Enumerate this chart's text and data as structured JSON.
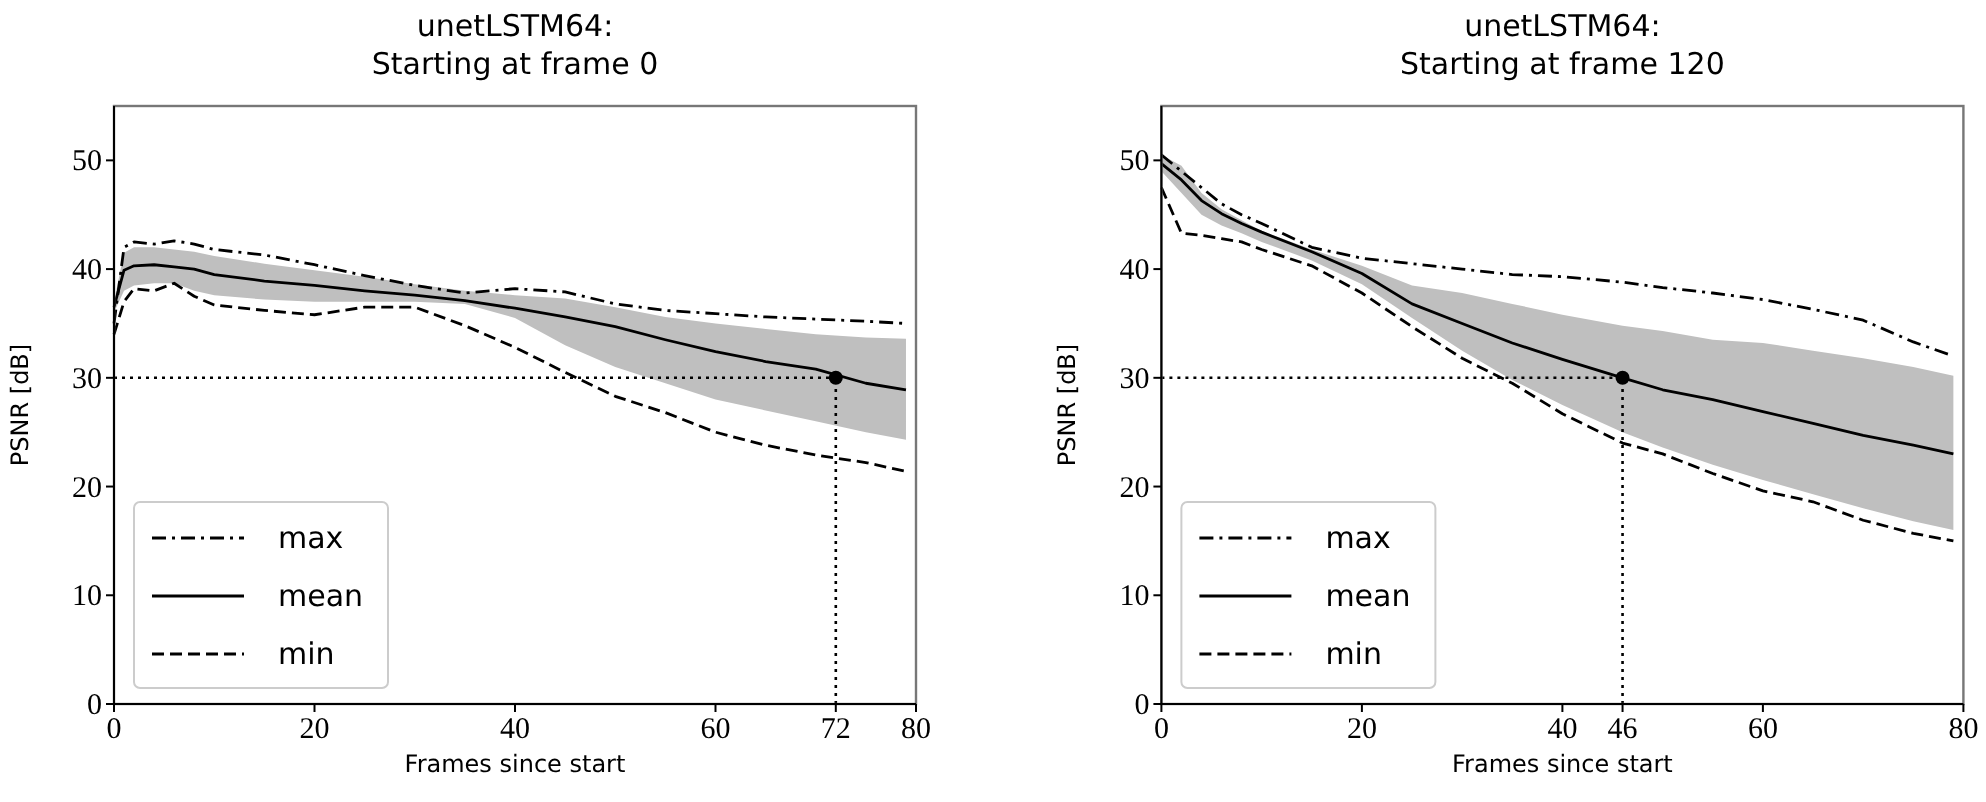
{
  "chart_data": [
    {
      "type": "line",
      "title": "unetLSTM64:\nStarting at frame 0",
      "xlabel": "Frames since start",
      "ylabel": "PSNR [dB]",
      "xlim": [
        0,
        80
      ],
      "xticks": [
        0,
        20,
        40,
        60,
        72,
        80
      ],
      "ylim": [
        0,
        55
      ],
      "yticks": [
        0,
        10,
        20,
        30,
        40,
        50
      ],
      "legend": "bottom left",
      "grid": false,
      "series": [
        {
          "name": "max",
          "color": "#000000",
          "line_style": "dashdot",
          "x": [
            0,
            1,
            2,
            4,
            6,
            8,
            10,
            15,
            20,
            25,
            30,
            35,
            40,
            45,
            50,
            55,
            60,
            65,
            70,
            75,
            79
          ],
          "values": [
            35,
            42,
            42.5,
            42.3,
            42.6,
            42.3,
            41.8,
            41.3,
            40.4,
            39.4,
            38.5,
            37.8,
            38.2,
            37.9,
            36.8,
            36.2,
            35.9,
            35.6,
            35.4,
            35.2,
            35.0
          ]
        },
        {
          "name": "mean",
          "color": "#000000",
          "line_style": "solid",
          "x": [
            0,
            1,
            2,
            4,
            6,
            8,
            10,
            15,
            20,
            25,
            30,
            35,
            40,
            45,
            50,
            55,
            60,
            65,
            70,
            75,
            79
          ],
          "values": [
            36.5,
            39.9,
            40.3,
            40.4,
            40.2,
            40.0,
            39.5,
            38.9,
            38.5,
            38.0,
            37.6,
            37.1,
            36.4,
            35.6,
            34.7,
            33.5,
            32.4,
            31.5,
            30.8,
            29.5,
            28.9
          ],
          "lower": [
            36,
            38,
            38.5,
            38.7,
            38.7,
            38,
            37.6,
            37.2,
            37,
            37,
            37,
            36.8,
            35.5,
            33,
            31,
            29.5,
            28,
            27,
            26,
            25,
            24.3
          ],
          "upper": [
            37,
            41.5,
            42,
            42,
            41.8,
            41.6,
            41.2,
            40.5,
            39.9,
            39.3,
            38.6,
            38,
            37.6,
            37.3,
            36.5,
            35.6,
            35,
            34.5,
            34,
            33.7,
            33.6
          ]
        },
        {
          "name": "min",
          "color": "#000000",
          "line_style": "dashed",
          "x": [
            0,
            1,
            2,
            4,
            6,
            8,
            10,
            15,
            20,
            25,
            30,
            35,
            40,
            45,
            50,
            55,
            60,
            65,
            70,
            75,
            79
          ],
          "values": [
            34,
            37,
            38.2,
            38,
            38.7,
            37.5,
            36.7,
            36.2,
            35.8,
            36.5,
            36.5,
            34.8,
            32.8,
            30.5,
            28.3,
            26.8,
            25.0,
            23.8,
            22.9,
            22.2,
            21.4
          ]
        },
        {
          "type": "scatter",
          "color": "#000000",
          "marker": "circle",
          "x": [
            72
          ],
          "values": [
            30
          ]
        }
      ],
      "ref_lines": [
        {
          "axis": "y",
          "value": 30,
          "color": "#000000",
          "line_style": "dotted"
        },
        {
          "axis": "x",
          "value": 72,
          "color": "#000000",
          "line_style": "dotted"
        }
      ]
    },
    {
      "type": "line",
      "title": "unetLSTM64:\nStarting at frame 120",
      "xlabel": "Frames since start",
      "ylabel": "PSNR [dB]",
      "xlim": [
        0,
        80
      ],
      "xticks": [
        0,
        20,
        40,
        46,
        60,
        80
      ],
      "ylim": [
        0,
        55
      ],
      "yticks": [
        0,
        10,
        20,
        30,
        40,
        50
      ],
      "legend": "bottom left",
      "grid": false,
      "series": [
        {
          "name": "max",
          "color": "#000000",
          "line_style": "dashdot",
          "x": [
            0,
            2,
            4,
            6,
            8,
            10,
            15,
            20,
            25,
            30,
            35,
            40,
            46,
            50,
            55,
            60,
            65,
            70,
            75,
            79
          ],
          "values": [
            50.5,
            49,
            47.5,
            46,
            45,
            44.2,
            42,
            41,
            40.5,
            40,
            39.5,
            39.3,
            38.8,
            38.3,
            37.8,
            37.2,
            36.3,
            35.3,
            33.3,
            32.0
          ]
        },
        {
          "name": "mean",
          "color": "#000000",
          "line_style": "solid",
          "x": [
            0,
            2,
            4,
            6,
            8,
            10,
            15,
            20,
            25,
            30,
            35,
            40,
            46,
            50,
            55,
            60,
            65,
            70,
            75,
            79
          ],
          "values": [
            49.7,
            48.2,
            46.3,
            45.1,
            44.2,
            43.4,
            41.6,
            39.6,
            36.8,
            35.0,
            33.2,
            31.7,
            30,
            28.9,
            28.0,
            26.9,
            25.8,
            24.7,
            23.8,
            23.0
          ],
          "lower": [
            49,
            47,
            45,
            44,
            43.3,
            42.5,
            40.8,
            38.6,
            35.5,
            32.5,
            29.8,
            27.5,
            25,
            23.6,
            22,
            20.6,
            19.3,
            18,
            16.8,
            16
          ],
          "upper": [
            50.5,
            49.5,
            47,
            45.5,
            44.5,
            43.5,
            41.8,
            40.3,
            38.5,
            37.8,
            36.8,
            35.8,
            34.8,
            34.3,
            33.5,
            33.2,
            32.5,
            31.8,
            31.0,
            30.2
          ]
        },
        {
          "name": "min",
          "color": "#000000",
          "line_style": "dashed",
          "x": [
            0,
            2,
            4,
            6,
            8,
            10,
            15,
            20,
            25,
            30,
            35,
            40,
            46,
            50,
            55,
            60,
            65,
            70,
            75,
            79
          ],
          "values": [
            47.5,
            43.3,
            43.1,
            42.8,
            42.5,
            41.8,
            40.3,
            37.8,
            34.7,
            31.8,
            29.5,
            26.7,
            24.0,
            23.0,
            21.2,
            19.6,
            18.6,
            16.9,
            15.7,
            15.0
          ]
        },
        {
          "type": "scatter",
          "color": "#000000",
          "marker": "circle",
          "x": [
            46
          ],
          "values": [
            30
          ]
        }
      ],
      "ref_lines": [
        {
          "axis": "y",
          "value": 30,
          "color": "#000000",
          "line_style": "dotted"
        },
        {
          "axis": "x",
          "value": 46,
          "color": "#000000",
          "line_style": "dotted"
        }
      ]
    }
  ]
}
